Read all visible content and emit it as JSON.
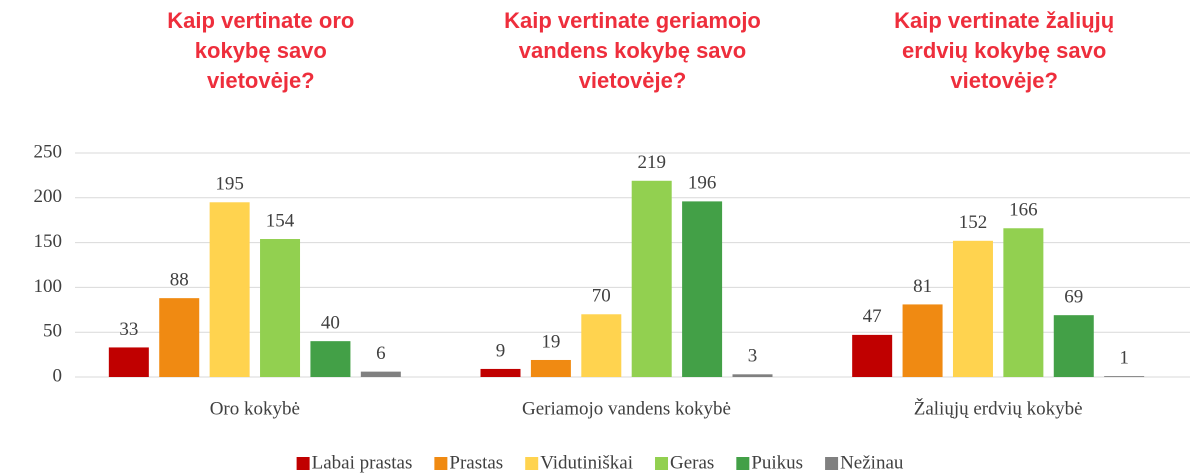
{
  "chart_data": {
    "type": "bar",
    "titles": [
      [
        "Kaip vertinate oro",
        "kokybę savo",
        "vietovėje?"
      ],
      [
        "Kaip vertinate geriamojo",
        "vandens kokybę savo",
        "vietovėje?"
      ],
      [
        "Kaip vertinate žaliųjų",
        "erdvių kokybę savo",
        "vietovėje?"
      ]
    ],
    "categories": [
      "Oro kokybė",
      "Geriamojo vandens kokybė",
      "Žaliųjų erdvių kokybė"
    ],
    "series": [
      {
        "name": "Labai prastas",
        "color": "#c00000",
        "values": [
          33,
          9,
          47
        ]
      },
      {
        "name": "Prastas",
        "color": "#f08a12",
        "values": [
          88,
          19,
          81
        ]
      },
      {
        "name": "Vidutiniškai",
        "color": "#ffd34f",
        "values": [
          195,
          70,
          152
        ]
      },
      {
        "name": "Geras",
        "color": "#92d050",
        "values": [
          154,
          219,
          166
        ]
      },
      {
        "name": "Puikus",
        "color": "#43a047",
        "values": [
          40,
          196,
          69
        ]
      },
      {
        "name": "Nežinau",
        "color": "#808080",
        "values": [
          6,
          3,
          1
        ]
      }
    ],
    "ylim": [
      0,
      250
    ],
    "yticks": [
      0,
      50,
      100,
      150,
      200,
      250
    ],
    "grid": true,
    "legend": "bottom"
  }
}
